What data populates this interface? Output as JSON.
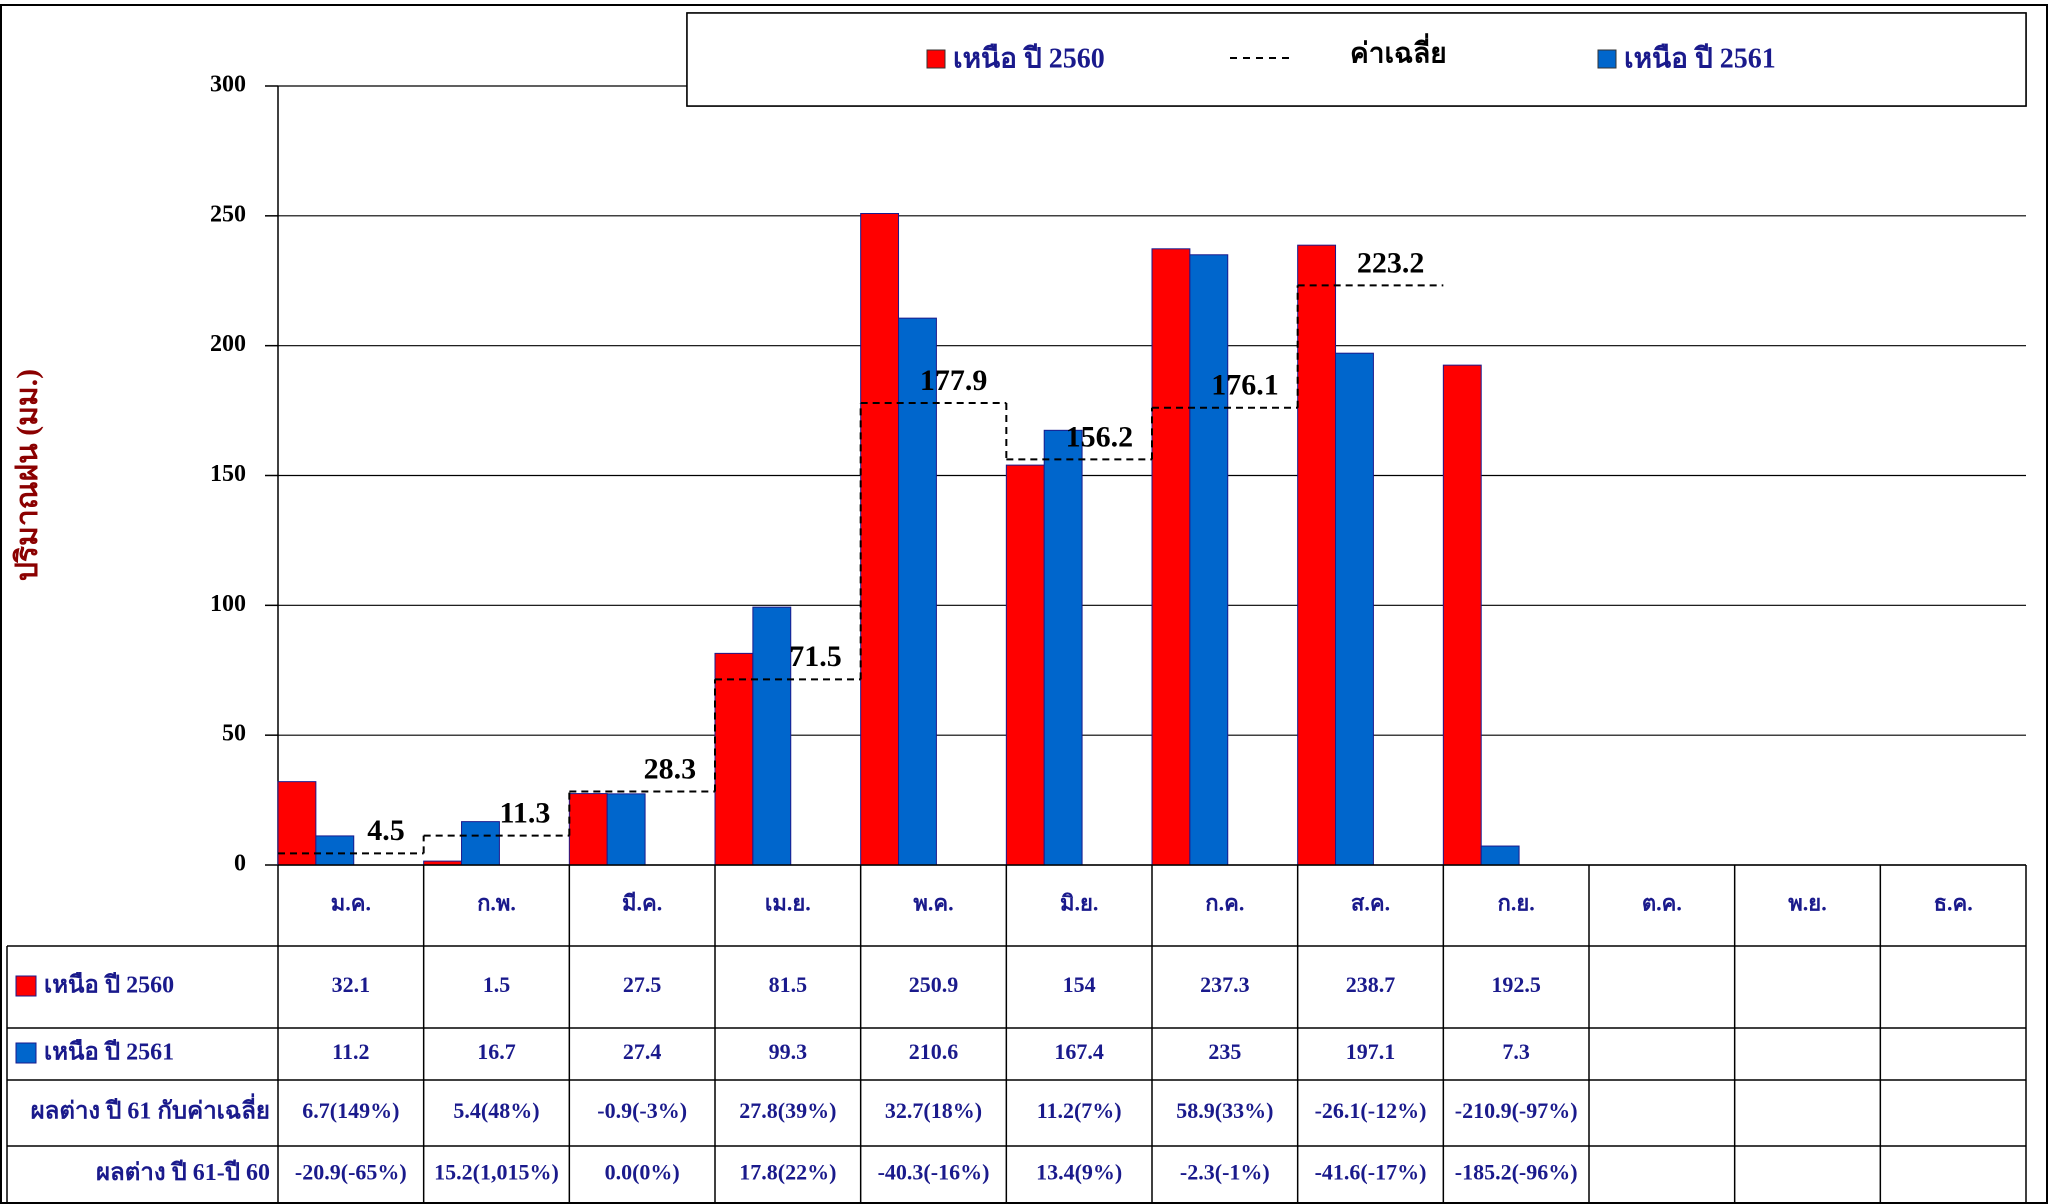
{
  "chart_data": {
    "type": "bar",
    "y_label": "ปริมาณฝน (มม.)",
    "categories": [
      "ม.ค.",
      "ก.พ.",
      "มี.ค.",
      "เม.ย.",
      "พ.ค.",
      "มิ.ย.",
      "ก.ค.",
      "ส.ค.",
      "ก.ย.",
      "ต.ค.",
      "พ.ย.",
      "ธ.ค."
    ],
    "series": [
      {
        "name": "เหนือ ปี 2560",
        "color": "#ff0000",
        "values": [
          32.1,
          1.5,
          27.5,
          81.5,
          250.9,
          154,
          237.3,
          238.7,
          192.5,
          null,
          null,
          null
        ]
      },
      {
        "name": "เหนือ ปี 2561",
        "color": "#0066cc",
        "values": [
          11.2,
          16.7,
          27.4,
          99.3,
          210.6,
          167.4,
          235,
          197.1,
          7.3,
          null,
          null,
          null
        ]
      }
    ],
    "average": {
      "name": "ค่าเฉลี่ย",
      "color": "#000000",
      "values": [
        4.5,
        11.3,
        28.3,
        71.5,
        177.9,
        156.2,
        176.1,
        223.2,
        null,
        null,
        null,
        null
      ]
    },
    "ylim": [
      0,
      300
    ],
    "yticks": [
      0,
      50,
      100,
      150,
      200,
      250,
      300
    ],
    "grid": true
  },
  "table": {
    "rows": [
      {
        "label": "ผลต่าง ปี 61 กับค่าเฉลี่ย",
        "cells": [
          "6.7(149%)",
          "5.4(48%)",
          "-0.9(-3%)",
          "27.8(39%)",
          "32.7(18%)",
          "11.2(7%)",
          "58.9(33%)",
          "-26.1(-12%)",
          "-210.9(-97%)",
          null,
          null,
          null
        ]
      },
      {
        "label": "ผลต่าง ปี 61-ปี 60",
        "cells": [
          "-20.9(-65%)",
          "15.2(1,015%)",
          "0.0(0%)",
          "17.8(22%)",
          "-40.3(-16%)",
          "13.4(9%)",
          "-2.3(-1%)",
          "-41.6(-17%)",
          "-185.2(-96%)",
          null,
          null,
          null
        ]
      }
    ]
  }
}
